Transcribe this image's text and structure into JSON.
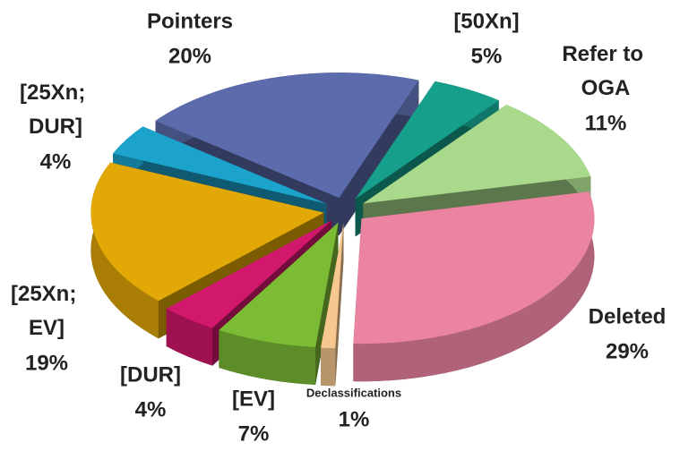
{
  "chart_data": {
    "type": "pie",
    "categories": [
      "[50Xn]",
      "Refer to OGA",
      "Deleted",
      "Declassifications",
      "[EV]",
      "[DUR]",
      "[25Xn; EV]",
      "[25Xn; DUR]",
      "Pointers"
    ],
    "values": [
      5,
      11,
      29,
      1,
      7,
      4,
      19,
      4,
      20
    ],
    "value_labels": [
      "5%",
      "11%",
      "29%",
      "1%",
      "7%",
      "4%",
      "19%",
      "4%",
      "20%"
    ],
    "colors": [
      "#16a08c",
      "#a9d98b",
      "#ea84a0",
      "#f6c78e",
      "#7cbc35",
      "#d2186c",
      "#e2a806",
      "#1ba3cc",
      "#5b6bab"
    ]
  }
}
